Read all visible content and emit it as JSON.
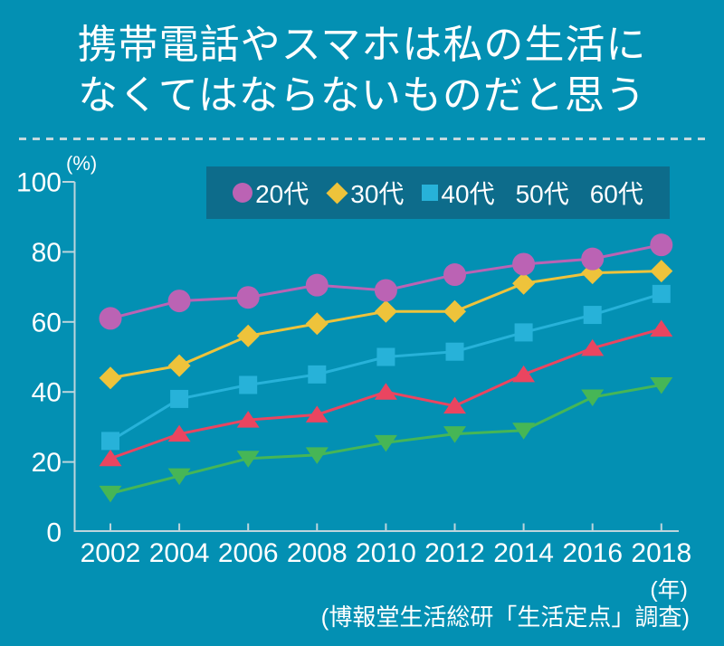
{
  "title": {
    "line1": "携帯電話やスマホは私の生活に",
    "line2": "なくてはならないものだと思う"
  },
  "source": "(博報堂生活総研「生活定点」調査)",
  "colors": {
    "background": "#0390b3",
    "legend_background": "#0d6c8b",
    "text": "#ffffff",
    "axis": "#bdd5dc"
  },
  "chart_data": {
    "type": "line",
    "title": "携帯電話やスマホは私の生活になくてはならないものだと思う",
    "categories": [
      "2002",
      "2004",
      "2006",
      "2008",
      "2010",
      "2012",
      "2014",
      "2016",
      "2018"
    ],
    "series": [
      {
        "name": "20代",
        "marker": "circle",
        "color": "#bb63b4",
        "values": [
          61,
          66,
          67,
          70.5,
          69,
          73.5,
          76.5,
          78,
          82
        ]
      },
      {
        "name": "30代",
        "marker": "diamond",
        "color": "#eec33b",
        "values": [
          44,
          47.5,
          56,
          59.5,
          63,
          63,
          71,
          74,
          74.5
        ]
      },
      {
        "name": "40代",
        "marker": "square",
        "color": "#27b2d9",
        "values": [
          26,
          38,
          42,
          45,
          50,
          51.5,
          57,
          62,
          68
        ]
      },
      {
        "name": "50代",
        "marker": "triangle-up",
        "color": "#ea4560",
        "values": [
          21,
          28,
          32,
          33.5,
          40,
          36,
          45,
          52.5,
          58
        ]
      },
      {
        "name": "60代",
        "marker": "triangle-down",
        "color": "#46b656",
        "values": [
          11,
          16,
          21,
          22,
          25.5,
          28,
          29,
          38.5,
          42
        ]
      }
    ],
    "ylim": [
      0,
      100
    ],
    "yticks": [
      0,
      20,
      40,
      60,
      80,
      100
    ],
    "ylabel": "(%)",
    "xlabel": "(年)",
    "legend_position": "top",
    "grid": false
  }
}
